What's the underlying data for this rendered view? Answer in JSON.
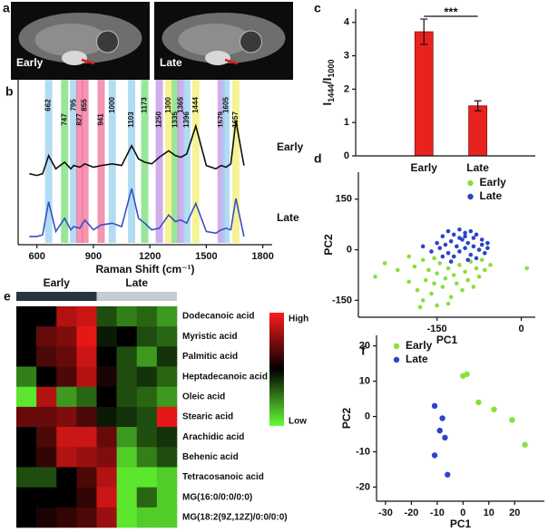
{
  "chart_data": [
    {
      "type": "image",
      "panel_label": "a",
      "images": [
        {
          "label": "Early"
        },
        {
          "label": "Late"
        }
      ]
    },
    {
      "type": "line",
      "panel_label": "b",
      "x": [
        560,
        600,
        630,
        662,
        700,
        747,
        780,
        795,
        827,
        855,
        900,
        941,
        1000,
        1050,
        1103,
        1140,
        1173,
        1210,
        1250,
        1300,
        1335,
        1365,
        1396,
        1444,
        1500,
        1550,
        1579,
        1605,
        1630,
        1657,
        1700
      ],
      "series": [
        {
          "name": "Early",
          "color": "#111111",
          "values": [
            4.3,
            4.2,
            4.3,
            5.4,
            4.6,
            5.0,
            4.6,
            4.8,
            4.7,
            4.9,
            4.7,
            4.8,
            4.9,
            4.8,
            6.0,
            5.2,
            5.0,
            4.9,
            5.3,
            5.7,
            5.4,
            5.3,
            5.5,
            7.2,
            4.8,
            4.6,
            4.8,
            4.7,
            4.9,
            7.5,
            4.8
          ]
        },
        {
          "name": "Late",
          "color": "#3a4fc4",
          "values": [
            0.5,
            0.5,
            0.6,
            2.6,
            0.8,
            1.6,
            0.9,
            1.1,
            1.0,
            1.5,
            0.9,
            1.2,
            1.3,
            1.1,
            3.4,
            1.6,
            1.3,
            0.9,
            1.0,
            1.8,
            1.4,
            1.5,
            1.3,
            2.5,
            0.8,
            0.7,
            0.9,
            1.0,
            0.9,
            2.8,
            0.5
          ]
        }
      ],
      "bands": {
        "positions": [
          662,
          747,
          795,
          827,
          855,
          941,
          1000,
          1103,
          1173,
          1250,
          1300,
          1335,
          1365,
          1396,
          1444,
          1579,
          1605,
          1657
        ],
        "colors": [
          "#9fd3f0",
          "#7ee07e",
          "#9fd3f0",
          "#f27aa0",
          "#f27aa0",
          "#f27aa0",
          "#9fd3f0",
          "#9fd3f0",
          "#7ee07e",
          "#c49be8",
          "#f4f07a",
          "#7ee07e",
          "#c49be8",
          "#9fd3f0",
          "#f4f07a",
          "#c49be8",
          "#9fd3f0",
          "#f4f07a"
        ]
      },
      "xlim": [
        500,
        1850
      ],
      "ylim": [
        0,
        10
      ],
      "xticks": [
        600,
        900,
        1200,
        1500,
        1800
      ],
      "xlabel": "Raman Shift (cm⁻¹)"
    },
    {
      "type": "bar",
      "panel_label": "c",
      "categories": [
        "Early",
        "Late"
      ],
      "values": [
        3.72,
        1.5
      ],
      "errors": [
        0.38,
        0.15
      ],
      "color": "#e8231f",
      "ylim": [
        0,
        4.4
      ],
      "yticks": [
        0,
        1,
        2,
        3,
        4
      ],
      "ylabel_parts": [
        "I",
        "1444",
        "/I",
        "1000"
      ],
      "annotation": "***"
    },
    {
      "type": "scatter",
      "panel_label": "d",
      "legend": "upper center",
      "series": [
        {
          "name": "Early",
          "color": "#88e03a",
          "x": [
            -243,
            -220,
            -200,
            -190,
            -185,
            -175,
            -170,
            -165,
            -160,
            -155,
            -150,
            -145,
            -140,
            -135,
            -130,
            -125,
            -120,
            -115,
            -110,
            -105,
            -100,
            -95,
            -90,
            -85,
            -80,
            -75,
            -70,
            -65,
            -55,
            -180,
            -150,
            -130,
            -200,
            -175,
            -155,
            10,
            -260,
            -120
          ],
          "values": [
            -40,
            -60,
            -95,
            -50,
            -120,
            -150,
            -90,
            -60,
            -130,
            -100,
            -70,
            -40,
            -110,
            -85,
            -55,
            -140,
            -75,
            -100,
            -45,
            -120,
            -65,
            -90,
            -35,
            -110,
            -55,
            -80,
            -30,
            -60,
            -45,
            -170,
            -165,
            -160,
            -20,
            -30,
            -25,
            -55,
            -80,
            -20
          ]
        },
        {
          "name": "Late",
          "color": "#2c44c8",
          "x": [
            -140,
            -130,
            -120,
            -110,
            -100,
            -90,
            -80,
            -70,
            -60,
            -150,
            -145,
            -135,
            -125,
            -115,
            -105,
            -95,
            -85,
            -75,
            -65,
            -130,
            -120,
            -110,
            -100,
            -90,
            -80,
            -70,
            -160,
            -175,
            -100,
            -110,
            -85,
            -95,
            -125,
            -140,
            -60
          ],
          "values": [
            40,
            55,
            45,
            60,
            50,
            55,
            45,
            30,
            20,
            20,
            5,
            15,
            25,
            10,
            30,
            20,
            10,
            0,
            -10,
            -10,
            -20,
            -5,
            5,
            -15,
            -25,
            15,
            -5,
            10,
            40,
            35,
            35,
            -30,
            -35,
            -20,
            5
          ]
        }
      ],
      "xlim": [
        -290,
        25
      ],
      "ylim": [
        -200,
        230
      ],
      "xticks": [
        -150,
        0
      ],
      "yticks": [
        -150,
        0,
        150
      ],
      "xlabel": "PC1",
      "ylabel": "PC2"
    },
    {
      "type": "heatmap",
      "panel_label": "e",
      "groups": [
        {
          "name": "Early",
          "color": "#263540"
        },
        {
          "name": "Late",
          "color": "#c3ccd0"
        }
      ],
      "rows": [
        "Dodecanoic acid",
        "Myristic acid",
        "Palmitic acid",
        "Heptadecanoic acid",
        "Oleic acid",
        "Stearic acid",
        "Arachidic acid",
        "Behenic acid",
        "Tetracosanoic acid",
        "MG(16:0/0:0/0:0)",
        "MG(18:2(9Z,12Z)/0:0/0:0)"
      ],
      "values": [
        [
          0,
          0,
          0.7,
          0.8,
          -0.3,
          -0.5,
          -0.4,
          -0.6
        ],
        [
          0,
          0.4,
          0.5,
          0.9,
          -0.1,
          0,
          -0.3,
          -0.4
        ],
        [
          0,
          0.3,
          0.4,
          0.8,
          0,
          -0.3,
          -0.6,
          -0.2
        ],
        [
          -0.5,
          0,
          0.3,
          0.7,
          0.1,
          -0.3,
          -0.2,
          -0.4
        ],
        [
          -0.9,
          0.7,
          -0.6,
          -0.4,
          0,
          -0.3,
          -0.4,
          -0.6
        ],
        [
          0.4,
          0.4,
          0.5,
          0.3,
          -0.1,
          -0.2,
          -0.3,
          0.9
        ],
        [
          0,
          0.3,
          0.8,
          0.8,
          0.4,
          -0.6,
          -0.3,
          -0.2
        ],
        [
          0,
          0.2,
          0.7,
          0.6,
          0.5,
          -0.8,
          -0.5,
          -0.3
        ],
        [
          -0.3,
          -0.3,
          0,
          0.3,
          0.7,
          -0.9,
          -0.9,
          -0.8
        ],
        [
          0,
          0,
          0,
          0.2,
          0.8,
          -0.9,
          -0.4,
          -0.8
        ],
        [
          0,
          0.1,
          0.2,
          0.3,
          0.6,
          -0.9,
          -0.8,
          -0.8
        ]
      ],
      "vlim": [
        -1,
        1
      ],
      "color_high": "#ff1a1a",
      "color_mid": "#000000",
      "color_low": "#66ff33",
      "legend_high": "High",
      "legend_low": "Low"
    },
    {
      "type": "scatter",
      "panel_label": "f",
      "legend": "upper left",
      "series": [
        {
          "name": "Early",
          "color": "#88e03a",
          "x": [
            0,
            1.5,
            6,
            12,
            19,
            24
          ],
          "values": [
            11.5,
            12,
            4,
            2,
            -1,
            -8
          ]
        },
        {
          "name": "Late",
          "color": "#2c44c8",
          "x": [
            -11,
            -8,
            -9,
            -7,
            -11,
            -6
          ],
          "values": [
            3,
            -0.5,
            -4,
            -6,
            -11,
            -16.5
          ]
        }
      ],
      "xlim": [
        -33.5,
        31.5
      ],
      "ylim": [
        -24,
        23
      ],
      "xticks": [
        -30,
        -20,
        -10,
        0,
        10,
        20
      ],
      "yticks": [
        -20,
        -10,
        0,
        10,
        20
      ],
      "xlabel": "PC1",
      "ylabel": "PC2"
    }
  ]
}
